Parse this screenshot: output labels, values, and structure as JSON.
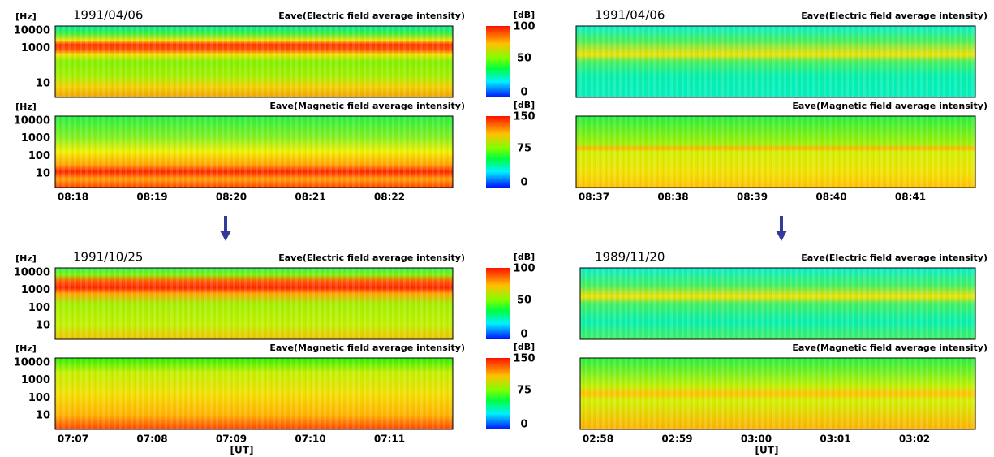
{
  "blocks": [
    {
      "date": "1991/04/06",
      "electric": {
        "title": "Eave(Electric field average intensity)",
        "unit": "[Hz]",
        "yticks": [
          "10000",
          "1000",
          "10"
        ]
      },
      "magnetic": {
        "title": "Eave(Magnetic field average intensity)",
        "unit": "[Hz]",
        "yticks": [
          "10000",
          "1000",
          "100",
          "10"
        ]
      },
      "times": [
        "08:18",
        "08:19",
        "08:20",
        "08:21",
        "08:22"
      ],
      "electric_colorbar": {
        "unit": "[dB]",
        "ticks": [
          "100",
          "50",
          "0"
        ]
      },
      "magnetic_colorbar": {
        "unit": "[dB]",
        "ticks": [
          "150",
          "75",
          "0"
        ]
      }
    },
    {
      "date": "1991/04/06",
      "electric": {
        "title": "Eave(Electric field average intensity)"
      },
      "magnetic": {
        "title": "Eave(Magnetic field average intensity)"
      },
      "times": [
        "08:37",
        "08:38",
        "08:39",
        "08:40",
        "08:41"
      ]
    },
    {
      "date": "1991/10/25",
      "electric": {
        "title": "Eave(Electric field average intensity)",
        "unit": "[Hz]",
        "yticks": [
          "10000",
          "1000",
          "100",
          "10"
        ]
      },
      "magnetic": {
        "title": "Eave(Magnetic field average intensity)",
        "unit": "[Hz]",
        "yticks": [
          "10000",
          "1000",
          "100",
          "10"
        ]
      },
      "times": [
        "07:07",
        "07:08",
        "07:09",
        "07:10",
        "07:11"
      ],
      "time_label": "[UT]",
      "electric_colorbar": {
        "unit": "[dB]",
        "ticks": [
          "100",
          "50",
          "0"
        ]
      },
      "magnetic_colorbar": {
        "unit": "[dB]",
        "ticks": [
          "150",
          "75",
          "0"
        ]
      }
    },
    {
      "date": "1989/11/20",
      "electric": {
        "title": "Eave(Electric field average intensity)"
      },
      "magnetic": {
        "title": "Eave(Magnetic field average intensity)"
      },
      "times": [
        "02:58",
        "02:59",
        "03:00",
        "03:01",
        "03:02"
      ],
      "time_label": "[UT]"
    }
  ]
}
